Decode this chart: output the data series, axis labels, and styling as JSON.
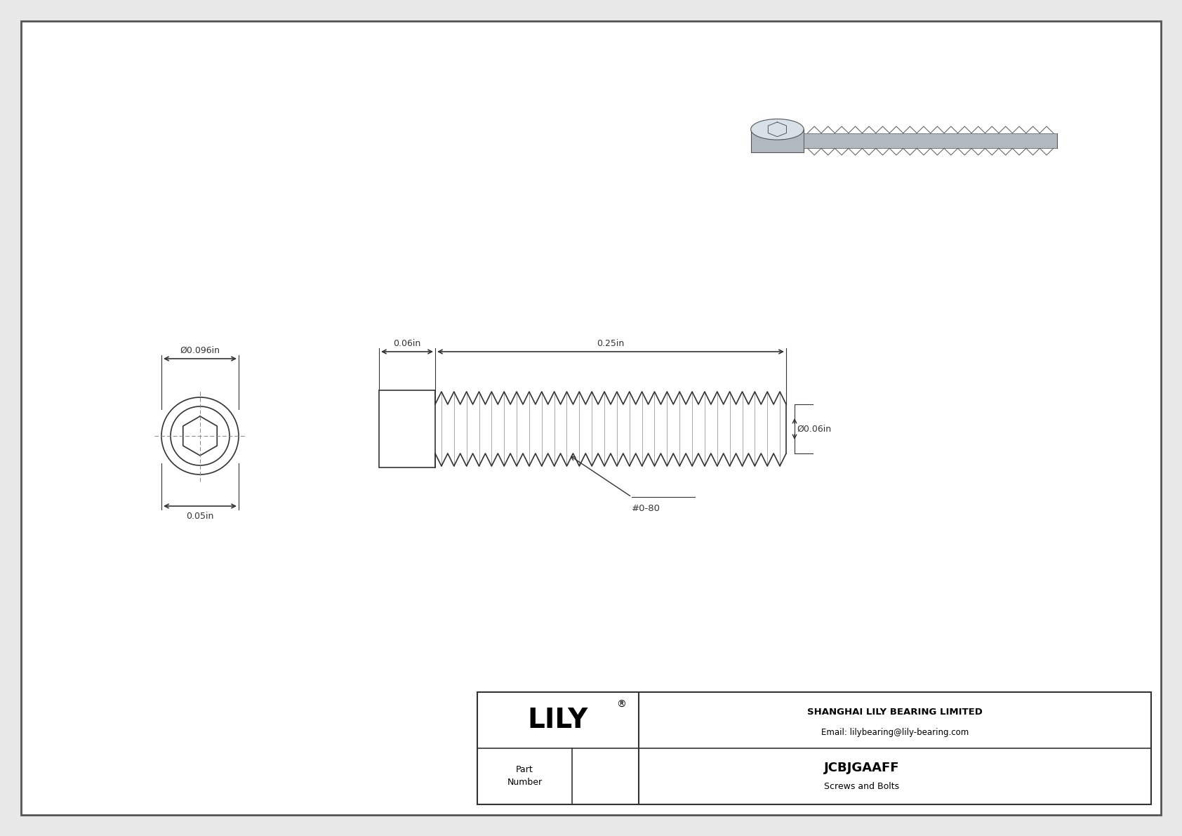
{
  "bg_color": "#e8e8e8",
  "drawing_bg": "#ffffff",
  "line_color": "#333333",
  "dim_color": "#333333",
  "title_company": "SHANGHAI LILY BEARING LIMITED",
  "title_email": "Email: lilybearing@lily-bearing.com",
  "part_number": "JCBJGAAFF",
  "part_category": "Screws and Bolts",
  "part_label": "Part\nNumber",
  "lily_text": "LILY",
  "dim_head_width": "Ø0.096in",
  "dim_head_height": "0.05in",
  "dim_thread_length": "0.25in",
  "dim_head_length": "0.06in",
  "dim_thread_dia": "Ø0.06in",
  "dim_thread_label": "#0-80"
}
